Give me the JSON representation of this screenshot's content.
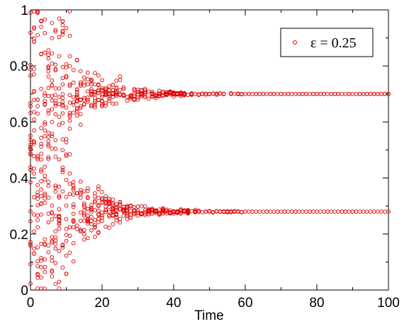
{
  "chart_data": {
    "type": "scatter",
    "xlabel": "Time",
    "ylabel": "",
    "xlim": [
      0,
      100
    ],
    "ylim": [
      0,
      1
    ],
    "x_ticks": [
      "0",
      "20",
      "40",
      "60",
      "80",
      "100"
    ],
    "y_ticks": [
      "0",
      "0.2",
      "0.4",
      "0.6",
      "0.8",
      "1"
    ],
    "grid": false,
    "legend": {
      "position": "top-right",
      "entries": [
        "ε = 0.25"
      ]
    },
    "marker": "open-circle",
    "series": [
      {
        "name": "ε = 0.25",
        "color": "#e00000",
        "description_of_dynamics": "chaotic spread over [0,1] for early times, collapsing onto two synchronized branches",
        "branches": [
          {
            "y_final": 0.7
          },
          {
            "y_final": 0.28
          }
        ],
        "converged_by_time": 60,
        "sample_points": [
          {
            "x": 0,
            "y": 0.02
          },
          {
            "x": 0,
            "y": 0.5
          },
          {
            "x": 0,
            "y": 0.98
          },
          {
            "x": 5,
            "y": 0.1
          },
          {
            "x": 5,
            "y": 0.45
          },
          {
            "x": 5,
            "y": 0.9
          },
          {
            "x": 10,
            "y": 0.15
          },
          {
            "x": 10,
            "y": 0.55
          },
          {
            "x": 10,
            "y": 0.85
          },
          {
            "x": 20,
            "y": 0.2
          },
          {
            "x": 20,
            "y": 0.3
          },
          {
            "x": 20,
            "y": 0.7
          },
          {
            "x": 20,
            "y": 0.8
          },
          {
            "x": 30,
            "y": 0.25
          },
          {
            "x": 30,
            "y": 0.72
          },
          {
            "x": 40,
            "y": 0.27
          },
          {
            "x": 40,
            "y": 0.7
          },
          {
            "x": 50,
            "y": 0.28
          },
          {
            "x": 50,
            "y": 0.7
          },
          {
            "x": 60,
            "y": 0.28
          },
          {
            "x": 60,
            "y": 0.7
          },
          {
            "x": 80,
            "y": 0.28
          },
          {
            "x": 80,
            "y": 0.7
          },
          {
            "x": 100,
            "y": 0.28
          },
          {
            "x": 100,
            "y": 0.7
          }
        ]
      }
    ]
  }
}
